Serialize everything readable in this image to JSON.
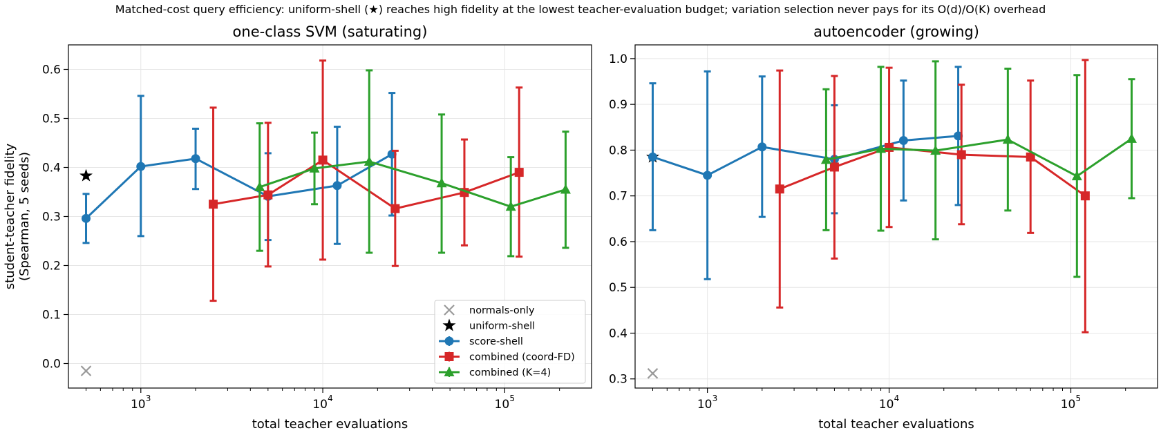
{
  "figure": {
    "suptitle": "Matched-cost query efficiency: uniform-shell (★) reaches high fidelity at the lowest teacher-evaluation budget; variation selection never pays for its O(d)/O(K) overhead"
  },
  "legend": {
    "entries": [
      {
        "label": "normals-only",
        "marker": "x",
        "color": "#999999"
      },
      {
        "label": "uniform-shell",
        "marker": "star",
        "color": "#000000"
      },
      {
        "label": "score-shell",
        "marker": "circle",
        "color": "#1f77b4"
      },
      {
        "label": "combined (coord-FD)",
        "marker": "square",
        "color": "#d62728"
      },
      {
        "label": "combined (K=4)",
        "marker": "triangle",
        "color": "#2ca02c"
      }
    ],
    "placement": "lower-right of left panel"
  },
  "chart_data": [
    {
      "type": "line",
      "title": "one-class SVM (saturating)",
      "xlabel": "total teacher evaluations",
      "ylabel": [
        "student-teacher fidelity",
        "(Spearman, 5 seeds)"
      ],
      "xscale": "log",
      "xlim": [
        400,
        300000
      ],
      "ylim": [
        -0.05,
        0.65
      ],
      "yticks": [
        0.0,
        0.1,
        0.2,
        0.3,
        0.4,
        0.5,
        0.6
      ],
      "ytick_labels": [
        "0.0",
        "0.1",
        "0.2",
        "0.3",
        "0.4",
        "0.5",
        "0.6"
      ],
      "xticks": [
        1000,
        10000,
        100000
      ],
      "xtick_labels": [
        "10",
        "10",
        "10"
      ],
      "xtick_exponents": [
        "3",
        "4",
        "5"
      ],
      "grid": true,
      "series": [
        {
          "name": "normals-only",
          "color": "#999999",
          "marker": "x",
          "line": false,
          "x": [
            500
          ],
          "y": [
            -0.015
          ],
          "yerr_low": [
            null
          ],
          "yerr_high": [
            null
          ]
        },
        {
          "name": "uniform-shell",
          "color": "#000000",
          "marker": "star",
          "line": false,
          "x": [
            500
          ],
          "y": [
            0.383
          ],
          "yerr_low": [
            null
          ],
          "yerr_high": [
            null
          ]
        },
        {
          "name": "score-shell",
          "color": "#1f77b4",
          "marker": "circle",
          "line": true,
          "x": [
            500,
            1000,
            2000,
            5000,
            12000,
            24000
          ],
          "y": [
            0.296,
            0.402,
            0.418,
            0.341,
            0.363,
            0.427
          ],
          "yerr_low": [
            0.246,
            0.26,
            0.356,
            0.252,
            0.244,
            0.302
          ],
          "yerr_high": [
            0.346,
            0.546,
            0.479,
            0.429,
            0.483,
            0.552
          ]
        },
        {
          "name": "combined (coord-FD)",
          "color": "#d62728",
          "marker": "square",
          "line": true,
          "x": [
            2500,
            5000,
            10000,
            25000,
            60000,
            120000
          ],
          "y": [
            0.325,
            0.344,
            0.415,
            0.316,
            0.349,
            0.39
          ],
          "yerr_low": [
            0.128,
            0.198,
            0.212,
            0.199,
            0.241,
            0.218
          ],
          "yerr_high": [
            0.522,
            0.491,
            0.618,
            0.434,
            0.457,
            0.563
          ]
        },
        {
          "name": "combined (K=4)",
          "color": "#2ca02c",
          "marker": "triangle",
          "line": true,
          "x": [
            4500,
            9000,
            18000,
            45000,
            108000,
            216000
          ],
          "y": [
            0.36,
            0.398,
            0.412,
            0.368,
            0.32,
            0.355
          ],
          "yerr_low": [
            0.23,
            0.325,
            0.226,
            0.226,
            0.219,
            0.236
          ],
          "yerr_high": [
            0.49,
            0.471,
            0.598,
            0.508,
            0.421,
            0.473
          ]
        }
      ]
    },
    {
      "type": "line",
      "title": "autoencoder (growing)",
      "xlabel": "total teacher evaluations",
      "ylabel": [],
      "xscale": "log",
      "xlim": [
        400,
        300000
      ],
      "ylim": [
        0.28,
        1.03
      ],
      "yticks": [
        0.3,
        0.4,
        0.5,
        0.6,
        0.7,
        0.8,
        0.9,
        1.0
      ],
      "ytick_labels": [
        "0.3",
        "0.4",
        "0.5",
        "0.6",
        "0.7",
        "0.8",
        "0.9",
        "1.0"
      ],
      "xticks": [
        1000,
        10000,
        100000
      ],
      "xtick_labels": [
        "10",
        "10",
        "10"
      ],
      "xtick_exponents": [
        "3",
        "4",
        "5"
      ],
      "grid": true,
      "series": [
        {
          "name": "normals-only",
          "color": "#999999",
          "marker": "x",
          "line": false,
          "x": [
            500
          ],
          "y": [
            0.312
          ],
          "yerr_low": [
            null
          ],
          "yerr_high": [
            null
          ]
        },
        {
          "name": "uniform-shell",
          "color": "#000000",
          "marker": "star",
          "line": false,
          "x": [
            500
          ],
          "y": [
            0.785
          ],
          "yerr_low": [
            null
          ],
          "yerr_high": [
            null
          ]
        },
        {
          "name": "score-shell",
          "color": "#1f77b4",
          "marker": "circle",
          "line": true,
          "x": [
            500,
            1000,
            2000,
            5000,
            12000,
            24000
          ],
          "y": [
            0.785,
            0.745,
            0.807,
            0.78,
            0.821,
            0.831
          ],
          "yerr_low": [
            0.625,
            0.518,
            0.654,
            0.662,
            0.69,
            0.68
          ],
          "yerr_high": [
            0.946,
            0.972,
            0.961,
            0.898,
            0.952,
            0.982
          ]
        },
        {
          "name": "combined (coord-FD)",
          "color": "#d62728",
          "marker": "square",
          "line": true,
          "x": [
            2500,
            5000,
            10000,
            25000,
            60000,
            120000
          ],
          "y": [
            0.715,
            0.763,
            0.806,
            0.79,
            0.785,
            0.7
          ],
          "yerr_low": [
            0.456,
            0.563,
            0.632,
            0.638,
            0.619,
            0.402
          ],
          "yerr_high": [
            0.974,
            0.962,
            0.98,
            0.943,
            0.952,
            0.997
          ]
        },
        {
          "name": "combined (K=4)",
          "color": "#2ca02c",
          "marker": "triangle",
          "line": true,
          "x": [
            4500,
            9000,
            18000,
            45000,
            108000,
            216000
          ],
          "y": [
            0.779,
            0.803,
            0.799,
            0.823,
            0.743,
            0.825
          ],
          "yerr_low": [
            0.625,
            0.624,
            0.605,
            0.668,
            0.523,
            0.695
          ],
          "yerr_high": [
            0.933,
            0.982,
            0.994,
            0.978,
            0.964,
            0.955
          ]
        }
      ]
    }
  ]
}
